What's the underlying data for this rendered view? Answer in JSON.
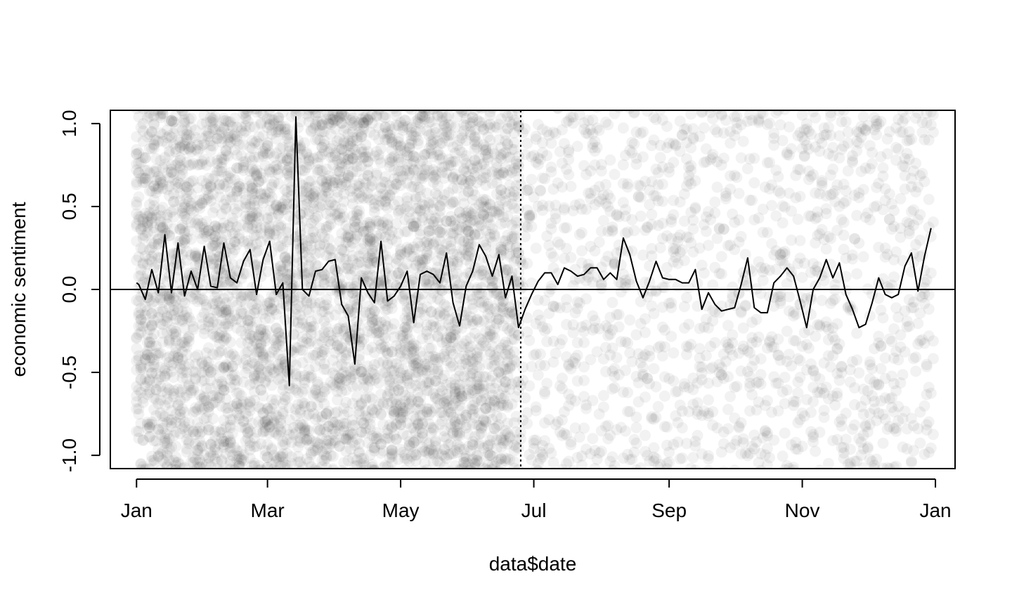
{
  "chart_data": {
    "type": "scatter",
    "title": "",
    "xlabel": "data$date",
    "ylabel": "economic sentiment",
    "x_ticks": [
      "Jan",
      "Mar",
      "May",
      "Jul",
      "Sep",
      "Nov",
      "Jan"
    ],
    "x_tick_dates": [
      "2020-01-01",
      "2020-03-01",
      "2020-05-01",
      "2020-07-01",
      "2020-09-01",
      "2020-11-01",
      "2021-01-01"
    ],
    "y_ticks": [
      "-1.0",
      "-0.5",
      "0.0",
      "0.5",
      "1.0"
    ],
    "y_tick_values": [
      -1.0,
      -0.5,
      0.0,
      0.5,
      1.0
    ],
    "xlim": [
      "2019-12-20",
      "2021-01-10"
    ],
    "ylim": [
      -1.08,
      1.08
    ],
    "reference_hline": 0.0,
    "reference_vline": "2020-06-25",
    "grid": false,
    "legend": "none",
    "point_color": "#000000",
    "line_color": "#000000",
    "series": [
      {
        "type": "line",
        "x": [
          "2020-01-01",
          "2020-01-02",
          "2020-01-05",
          "2020-01-08",
          "2020-01-11",
          "2020-01-14",
          "2020-01-17",
          "2020-01-20",
          "2020-01-23",
          "2020-01-26",
          "2020-01-29",
          "2020-02-01",
          "2020-02-04",
          "2020-02-07",
          "2020-02-10",
          "2020-02-13",
          "2020-02-16",
          "2020-02-19",
          "2020-02-22",
          "2020-02-25",
          "2020-02-28",
          "2020-03-02",
          "2020-03-05",
          "2020-03-08",
          "2020-03-11",
          "2020-03-14",
          "2020-03-17",
          "2020-03-20",
          "2020-03-23",
          "2020-03-26",
          "2020-03-29",
          "2020-04-01",
          "2020-04-04",
          "2020-04-07",
          "2020-04-10",
          "2020-04-13",
          "2020-04-16",
          "2020-04-19",
          "2020-04-22",
          "2020-04-25",
          "2020-04-28",
          "2020-05-01",
          "2020-05-04",
          "2020-05-07",
          "2020-05-10",
          "2020-05-13",
          "2020-05-16",
          "2020-05-19",
          "2020-05-22",
          "2020-05-25",
          "2020-05-28",
          "2020-05-31",
          "2020-06-03",
          "2020-06-06",
          "2020-06-09",
          "2020-06-12",
          "2020-06-15",
          "2020-06-18",
          "2020-06-21",
          "2020-06-24",
          "2020-06-27",
          "2020-06-30",
          "2020-07-03",
          "2020-07-06",
          "2020-07-09",
          "2020-07-12",
          "2020-07-15",
          "2020-07-18",
          "2020-07-21",
          "2020-07-24",
          "2020-07-27",
          "2020-07-30",
          "2020-08-02",
          "2020-08-05",
          "2020-08-08",
          "2020-08-11",
          "2020-08-14",
          "2020-08-17",
          "2020-08-20",
          "2020-08-23",
          "2020-08-26",
          "2020-08-29",
          "2020-09-01",
          "2020-09-04",
          "2020-09-07",
          "2020-09-10",
          "2020-09-13",
          "2020-09-16",
          "2020-09-19",
          "2020-09-22",
          "2020-09-25",
          "2020-09-28",
          "2020-10-01",
          "2020-10-04",
          "2020-10-07",
          "2020-10-10",
          "2020-10-13",
          "2020-10-16",
          "2020-10-19",
          "2020-10-22",
          "2020-10-25",
          "2020-10-28",
          "2020-10-31",
          "2020-11-03",
          "2020-11-06",
          "2020-11-09",
          "2020-11-12",
          "2020-11-15",
          "2020-11-18",
          "2020-11-21",
          "2020-11-24",
          "2020-11-27",
          "2020-11-30",
          "2020-12-03",
          "2020-12-06",
          "2020-12-09",
          "2020-12-12",
          "2020-12-15",
          "2020-12-18",
          "2020-12-21",
          "2020-12-24",
          "2020-12-27",
          "2020-12-30"
        ],
        "y": [
          0.04,
          0.03,
          -0.06,
          0.12,
          -0.02,
          0.33,
          -0.02,
          0.28,
          -0.04,
          0.11,
          0.0,
          0.26,
          0.02,
          0.01,
          0.28,
          0.07,
          0.04,
          0.17,
          0.24,
          -0.03,
          0.18,
          0.29,
          -0.03,
          0.04,
          -0.58,
          1.04,
          0.0,
          -0.04,
          0.11,
          0.12,
          0.17,
          0.18,
          -0.09,
          -0.16,
          -0.45,
          0.07,
          -0.02,
          -0.08,
          0.29,
          -0.07,
          -0.04,
          0.02,
          0.11,
          -0.2,
          0.09,
          0.11,
          0.09,
          0.04,
          0.22,
          -0.08,
          -0.22,
          0.02,
          0.11,
          0.27,
          0.2,
          0.08,
          0.21,
          -0.05,
          0.08,
          -0.23,
          -0.12,
          -0.03,
          0.05,
          0.1,
          0.1,
          0.03,
          0.13,
          0.11,
          0.08,
          0.09,
          0.13,
          0.13,
          0.06,
          0.1,
          0.06,
          0.31,
          0.21,
          0.05,
          -0.05,
          0.05,
          0.17,
          0.07,
          0.06,
          0.06,
          0.04,
          0.04,
          0.12,
          -0.12,
          -0.02,
          -0.09,
          -0.13,
          -0.12,
          -0.11,
          0.03,
          0.19,
          -0.11,
          -0.14,
          -0.14,
          0.04,
          0.08,
          0.13,
          0.08,
          -0.07,
          -0.23,
          0.0,
          0.07,
          0.18,
          0.07,
          0.16,
          -0.03,
          -0.12,
          -0.23,
          -0.21,
          -0.08,
          0.07,
          -0.03,
          -0.05,
          -0.03,
          0.14,
          0.22,
          -0.01,
          0.2,
          0.37
        ]
      }
    ],
    "points_description_density": "semi-transparent gray scatter of individual article sentiments in [-1,1], very dense Jan-Jun, sparser Jul-Dec"
  },
  "axes": {
    "xlabel": "data$date",
    "ylabel": "economic sentiment"
  }
}
